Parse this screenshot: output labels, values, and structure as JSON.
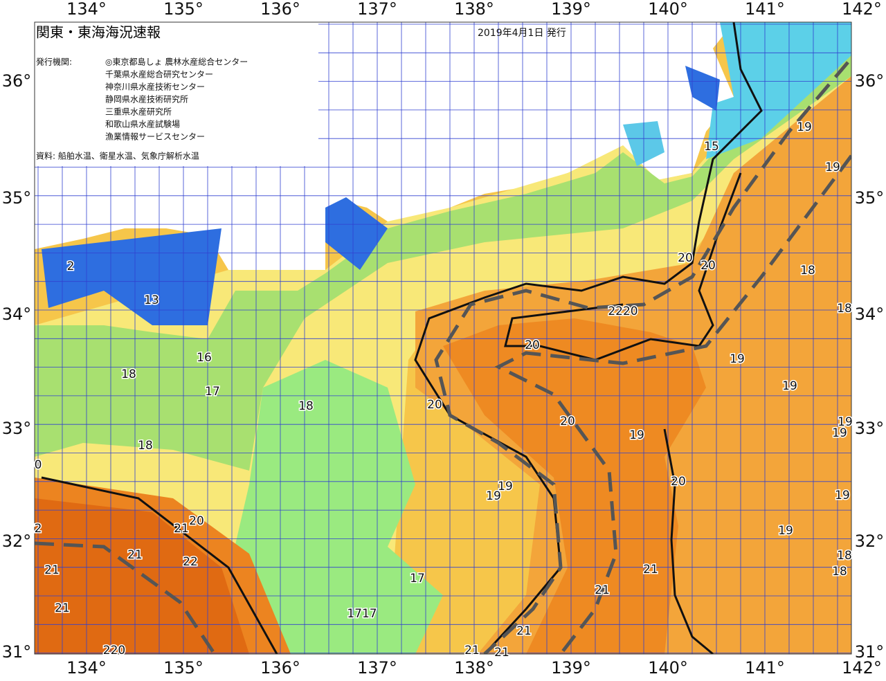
{
  "header": {
    "title": "関東・東海海況速報",
    "date": "2019年4月1日 発行",
    "agencies_label": "発行機関:",
    "agencies": [
      "◎東京都島しょ 農林水産総合センター",
      "千葉県水産総合研究センター",
      "神奈川県水産技術センター",
      "静岡県水産技術研究所",
      "三重県水産研究所",
      "和歌山県水産試験場",
      "漁業情報サービスセンター"
    ],
    "source": "資料: 船舶水温、衛星水温、気象庁解析水温"
  },
  "axes": {
    "longitudes": [
      "134°",
      "135°",
      "136°",
      "137°",
      "138°",
      "139°",
      "140°",
      "141°",
      "142°"
    ],
    "latitudes": [
      "36°",
      "35°",
      "34°",
      "33°",
      "32°",
      "31°"
    ]
  },
  "contour_labels": [
    "15",
    "19",
    "19",
    "20",
    "20",
    "18",
    "18",
    "2220",
    "20",
    "19",
    "19",
    "18",
    "20",
    "20",
    "19",
    "19",
    "19",
    "20",
    "19",
    "19",
    "19",
    "19",
    "18",
    "18",
    "21",
    "21",
    "21",
    "21",
    "21",
    "17",
    "1717",
    "13",
    "16",
    "18",
    "17",
    "18",
    "0",
    "21",
    "20",
    "21",
    "22",
    "21",
    "21",
    "2",
    "220",
    "2"
  ]
}
